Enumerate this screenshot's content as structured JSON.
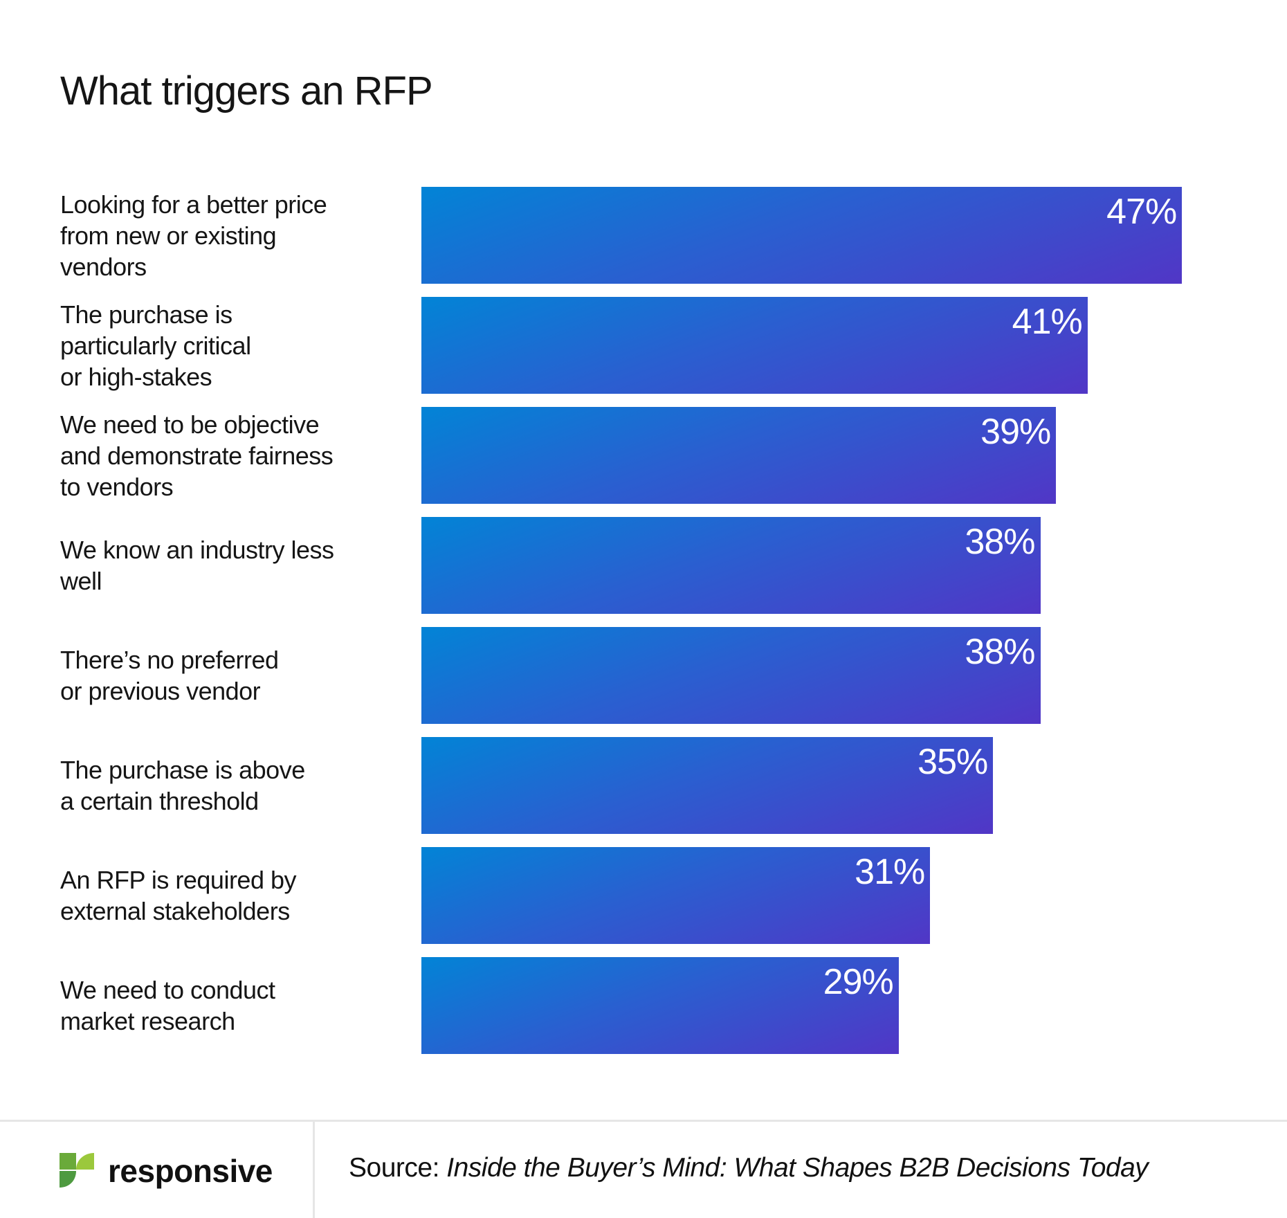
{
  "chart_data": {
    "type": "bar",
    "orientation": "horizontal",
    "title": "What triggers an RFP",
    "categories": [
      "Looking for a better price\nfrom new or existing\nvendors",
      "The purchase is\nparticularly critical\nor high-stakes",
      "We need to be objective\nand demonstrate fairness\nto vendors",
      "We know an industry less\nwell",
      "There’s no preferred\nor previous vendor",
      "The purchase is above\na certain threshold",
      "An RFP is required by\nexternal stakeholders",
      "We need to conduct\nmarket research"
    ],
    "values": [
      47,
      41,
      39,
      38,
      38,
      35,
      31,
      29
    ],
    "value_labels": [
      "47%",
      "41%",
      "39%",
      "38%",
      "38%",
      "35%",
      "31%",
      "29%"
    ],
    "unit": "%",
    "grid": false,
    "colors": {
      "bar_start": "#0284d6",
      "bar_end": "#5136c6"
    }
  },
  "footer": {
    "brand": "responsive",
    "source_prefix": "Source: ",
    "source_title": "Inside the Buyer’s Mind: What Shapes B2B Decisions Today",
    "logo_colors": [
      "#6aaa3a",
      "#9bc83c",
      "#4e9a40"
    ]
  }
}
